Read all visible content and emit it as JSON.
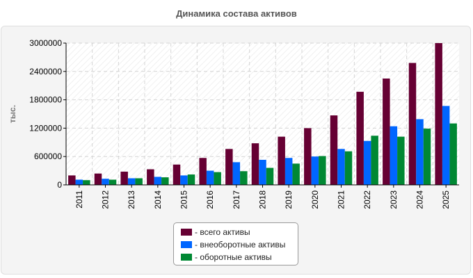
{
  "chart_data": {
    "type": "bar",
    "title": "Динамика состава активов",
    "ylabel": "тыс.",
    "xlabel": "",
    "categories": [
      "2011",
      "2012",
      "2013",
      "2014",
      "2015",
      "2016",
      "2017",
      "2018",
      "2019",
      "2020",
      "2021",
      "2022",
      "2023",
      "2024",
      "2025"
    ],
    "ylim": [
      0,
      3000000
    ],
    "yticks": [
      "0",
      "600000",
      "1200000",
      "1800000",
      "2400000",
      "3000000"
    ],
    "grid": true,
    "legend_position": "bottom",
    "series": [
      {
        "name": "- всего активы",
        "color": "#660033",
        "values": [
          200000,
          240000,
          280000,
          330000,
          430000,
          570000,
          760000,
          880000,
          1020000,
          1200000,
          1470000,
          1970000,
          2250000,
          2580000,
          3000000
        ]
      },
      {
        "name": "- внеоборотные активы",
        "color": "#0066ff",
        "values": [
          110000,
          130000,
          140000,
          170000,
          200000,
          300000,
          480000,
          530000,
          570000,
          600000,
          760000,
          930000,
          1240000,
          1390000,
          1670000
        ]
      },
      {
        "name": "- оборотные активы",
        "color": "#008833",
        "values": [
          100000,
          110000,
          140000,
          160000,
          220000,
          270000,
          290000,
          360000,
          450000,
          610000,
          710000,
          1040000,
          1020000,
          1190000,
          1300000
        ]
      }
    ]
  }
}
